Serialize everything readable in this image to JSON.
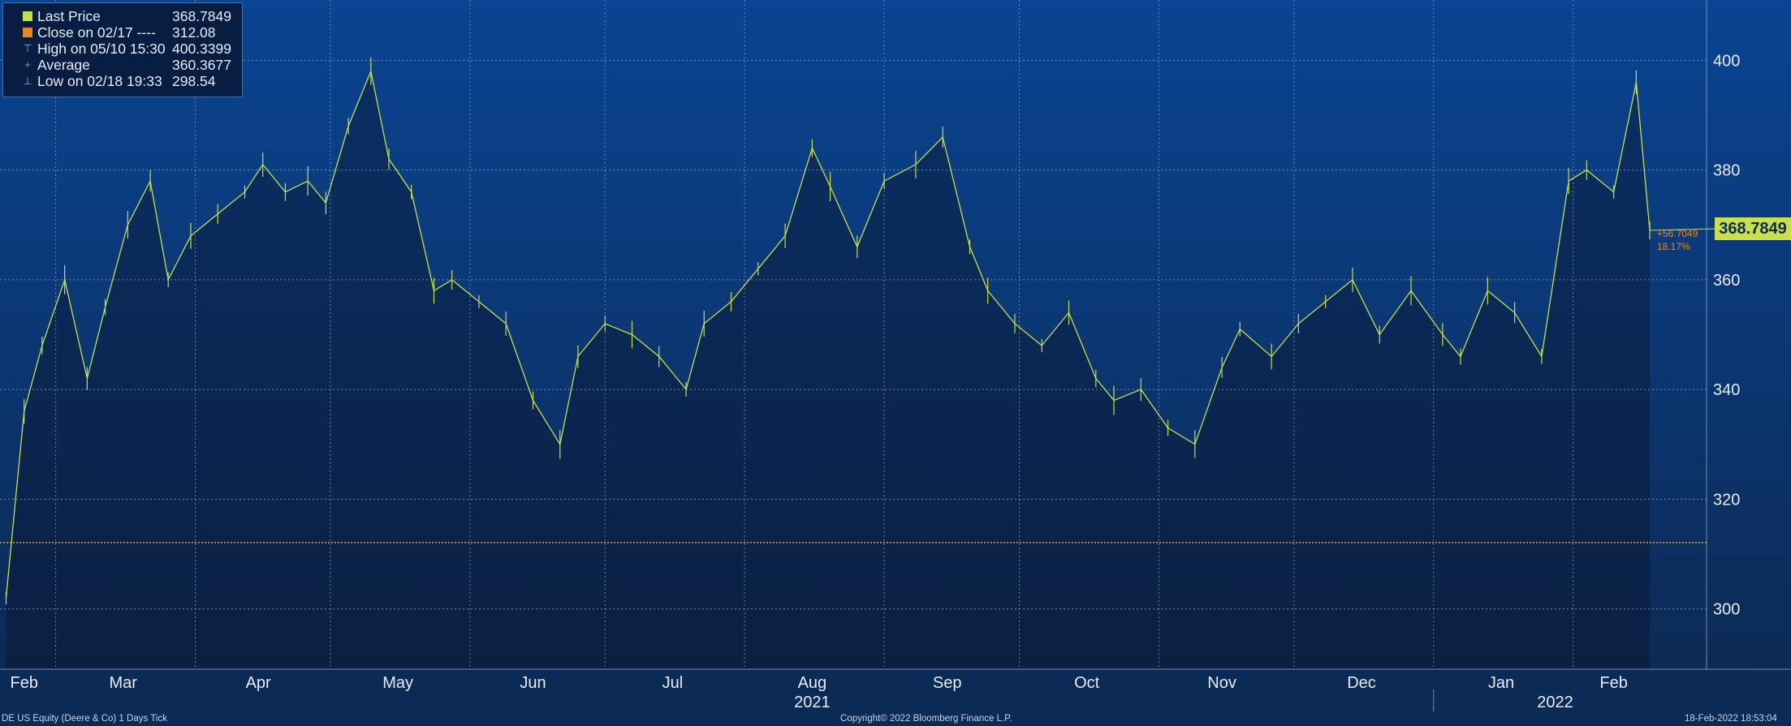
{
  "legend": {
    "last_label": "Last Price",
    "last_value": "368.7849",
    "close_label": "Close on 02/17 ----",
    "close_value": "312.08",
    "high_label": "High on 05/10 15:30",
    "high_value": "400.3399",
    "avg_label": "Average",
    "avg_value": "360.3677",
    "low_label": "Low on 02/18 19:33",
    "low_value": "298.54"
  },
  "last_price_tag": "368.7849",
  "change_abs": "+56.7049",
  "change_pct": "18.17%",
  "footer": {
    "left": "DE US Equity (Deere & Co) 1 Days  Tick",
    "center": "Copyright© 2022 Bloomberg Finance L.P.",
    "right": "18-Feb-2022 18:53:04"
  },
  "colors": {
    "price": "#c3e04a",
    "close_line": "#e5a52a",
    "tag": "#c8e04a",
    "grid": "#8aa7d1"
  },
  "chart_data": {
    "type": "line",
    "title": "",
    "xlabel": "",
    "ylabel": "",
    "ylim": [
      289,
      411
    ],
    "y_ticks": [
      300,
      320,
      340,
      360,
      380,
      400
    ],
    "grid": true,
    "legend_position": "top-left",
    "x_month_labels": [
      "Feb",
      "Mar",
      "Apr",
      "May",
      "Jun",
      "Jul",
      "Aug",
      "Sep",
      "Oct",
      "Nov",
      "Dec",
      "Jan",
      "Feb"
    ],
    "x_year_labels": [
      "2021",
      "2022"
    ],
    "reference_line": {
      "name": "Close on 02/17",
      "value": 312.08
    },
    "series": [
      {
        "name": "Last Price",
        "x": [
          "2021-02-18",
          "2021-02-22",
          "2021-02-26",
          "2021-03-03",
          "2021-03-08",
          "2021-03-12",
          "2021-03-17",
          "2021-03-22",
          "2021-03-26",
          "2021-03-31",
          "2021-04-06",
          "2021-04-12",
          "2021-04-16",
          "2021-04-21",
          "2021-04-26",
          "2021-04-30",
          "2021-05-05",
          "2021-05-10",
          "2021-05-14",
          "2021-05-19",
          "2021-05-24",
          "2021-05-28",
          "2021-06-03",
          "2021-06-09",
          "2021-06-15",
          "2021-06-21",
          "2021-06-25",
          "2021-07-01",
          "2021-07-07",
          "2021-07-13",
          "2021-07-19",
          "2021-07-23",
          "2021-07-29",
          "2021-08-04",
          "2021-08-10",
          "2021-08-16",
          "2021-08-20",
          "2021-08-26",
          "2021-09-01",
          "2021-09-08",
          "2021-09-14",
          "2021-09-20",
          "2021-09-24",
          "2021-09-30",
          "2021-10-06",
          "2021-10-12",
          "2021-10-18",
          "2021-10-22",
          "2021-10-28",
          "2021-11-03",
          "2021-11-09",
          "2021-11-15",
          "2021-11-19",
          "2021-11-26",
          "2021-12-02",
          "2021-12-08",
          "2021-12-14",
          "2021-12-20",
          "2021-12-27",
          "2022-01-03",
          "2022-01-07",
          "2022-01-13",
          "2022-01-19",
          "2022-01-25",
          "2022-01-31",
          "2022-02-04",
          "2022-02-10",
          "2022-02-15",
          "2022-02-18"
        ],
        "values": [
          302,
          336,
          348,
          360,
          342,
          355,
          370,
          378,
          360,
          368,
          372,
          376,
          381,
          376,
          378,
          374,
          388,
          398,
          382,
          376,
          358,
          360,
          356,
          352,
          338,
          330,
          346,
          352,
          350,
          346,
          340,
          352,
          356,
          362,
          368,
          384,
          377,
          366,
          378,
          381,
          386,
          366,
          358,
          352,
          348,
          354,
          342,
          338,
          340,
          333,
          330,
          344,
          351,
          346,
          352,
          356,
          360,
          350,
          358,
          350,
          346,
          358,
          354,
          346,
          378,
          380,
          376,
          396,
          369
        ]
      }
    ]
  }
}
